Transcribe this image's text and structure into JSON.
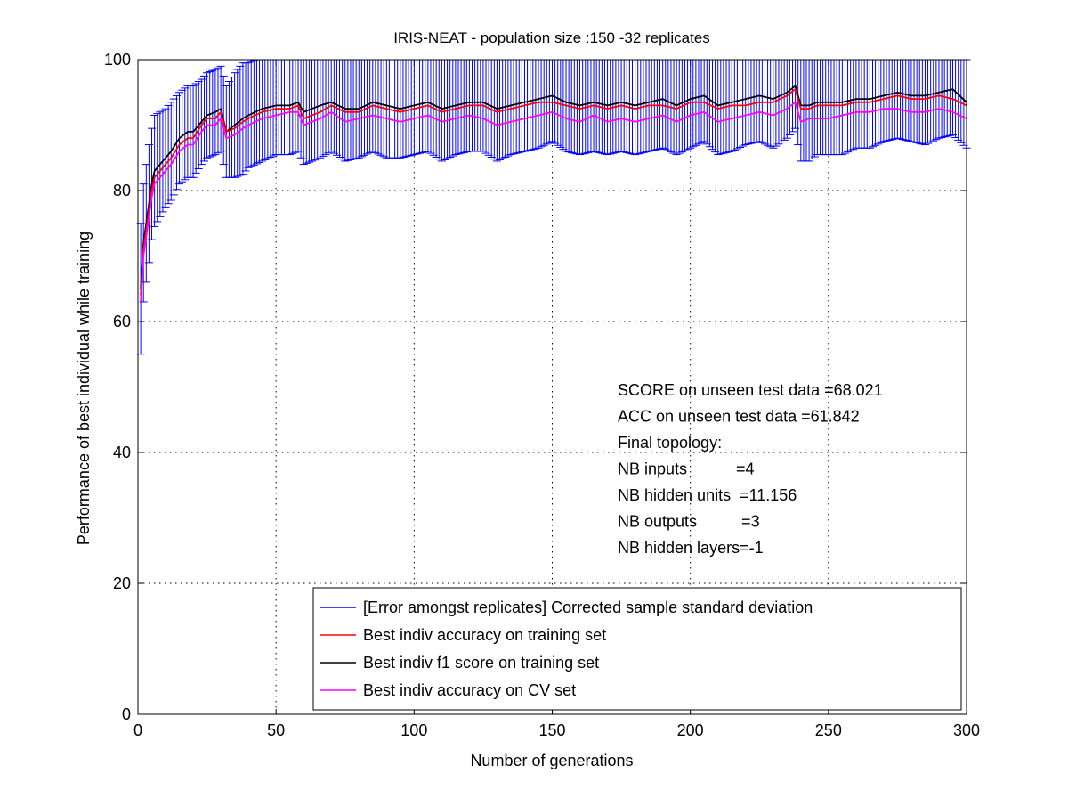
{
  "chart_data": {
    "type": "line",
    "title": "IRIS-NEAT - population size :150 -32 replicates",
    "xlabel": "Number of generations",
    "ylabel": "Performance of best individual while training",
    "xlim": [
      0,
      300
    ],
    "ylim": [
      0,
      100
    ],
    "xticks": [
      0,
      50,
      100,
      150,
      200,
      250,
      300
    ],
    "yticks": [
      0,
      20,
      40,
      60,
      80,
      100
    ],
    "grid": true,
    "legend_position": "bottom-right",
    "x_points": [
      1,
      2,
      3,
      4,
      5,
      6,
      8,
      10,
      12,
      15,
      18,
      20,
      23,
      25,
      28,
      30,
      32,
      35,
      38,
      40,
      45,
      50,
      55,
      58,
      60,
      63,
      66,
      70,
      75,
      80,
      85,
      90,
      95,
      100,
      105,
      110,
      115,
      120,
      125,
      130,
      135,
      140,
      145,
      150,
      155,
      160,
      165,
      170,
      175,
      180,
      185,
      190,
      195,
      200,
      205,
      210,
      215,
      220,
      225,
      230,
      235,
      238,
      240,
      243,
      246,
      250,
      255,
      260,
      265,
      270,
      275,
      280,
      285,
      290,
      295,
      300
    ],
    "series": [
      {
        "name": "Best indiv accuracy on training set",
        "color": "#ff0000",
        "values": [
          64,
          71,
          74,
          77,
          80,
          82,
          83,
          84,
          85,
          87,
          88,
          88,
          90,
          91,
          91,
          92,
          89,
          89.5,
          90.5,
          91,
          92,
          92.5,
          92.5,
          93,
          91,
          91.5,
          92,
          93,
          92,
          92,
          93,
          92.5,
          92,
          92.5,
          93,
          92,
          92.5,
          93,
          93,
          92,
          92.5,
          93,
          93.5,
          93.5,
          93,
          92.5,
          93,
          92.5,
          93,
          92.5,
          93,
          93,
          92.5,
          93.5,
          93.5,
          92.5,
          93,
          93,
          93.5,
          93.5,
          94.5,
          95.5,
          92.5,
          92.5,
          93,
          93,
          93,
          93.5,
          93.5,
          94,
          94.5,
          94,
          94,
          94.5,
          94,
          93
        ]
      },
      {
        "name": "Best indiv f1 score on training set",
        "color": "#000000",
        "values": [
          65,
          72,
          75,
          78,
          81,
          83,
          84,
          85,
          86,
          88,
          89,
          89,
          90.5,
          91.5,
          92,
          92.5,
          89,
          90,
          91,
          91.5,
          92.5,
          93,
          93,
          93.5,
          92,
          92.5,
          93,
          93.5,
          92.5,
          92.5,
          93.5,
          93,
          92.5,
          93,
          93.5,
          92.5,
          93,
          93.5,
          93.5,
          92.5,
          93,
          93.5,
          94,
          94.5,
          93.5,
          93,
          93.5,
          93,
          93.5,
          93,
          93.5,
          94,
          93,
          94,
          94.5,
          93,
          93.5,
          94,
          94.5,
          94,
          95,
          96,
          93,
          93,
          93.5,
          93.5,
          93.5,
          94,
          94,
          94.5,
          95,
          94.5,
          94.5,
          95,
          95.5,
          93.5
        ]
      },
      {
        "name": "Best indiv accuracy on CV set",
        "color": "#ff00ff",
        "values": [
          63,
          70,
          73,
          76,
          79,
          81,
          82,
          83,
          84,
          86,
          87,
          87,
          89,
          90,
          90,
          91,
          88,
          88.5,
          89.5,
          90,
          91,
          91.5,
          92,
          92,
          90,
          90.5,
          91,
          92,
          90.5,
          91,
          91.5,
          91,
          90.5,
          91,
          91.5,
          90.5,
          91,
          91.5,
          91,
          90,
          90.5,
          91,
          91.5,
          92,
          91,
          90.5,
          91.5,
          90.5,
          91,
          90.5,
          91,
          91.5,
          90.5,
          91.5,
          92,
          90.5,
          91,
          91.5,
          92,
          91.5,
          92.5,
          93.5,
          90.5,
          91,
          91,
          91,
          91.5,
          92,
          92,
          92.5,
          92.5,
          92,
          92,
          92.5,
          92,
          91
        ]
      }
    ],
    "error_bars": {
      "name": "[Error amongst replicates] Corrected sample standard deviation",
      "color": "#0000ff",
      "applies_to": "Best indiv f1 score on training set",
      "std": [
        10,
        9,
        9,
        9,
        8.5,
        8.5,
        8,
        7.5,
        7.5,
        7,
        7,
        7,
        6.5,
        6.5,
        6.5,
        6.5,
        7,
        8,
        8.5,
        8,
        8,
        7.5,
        7.5,
        7.5,
        8,
        8,
        8,
        7.5,
        8,
        7.5,
        7.5,
        8,
        7.5,
        7.5,
        7.5,
        8,
        7.5,
        7.5,
        7.5,
        8,
        7.5,
        7.5,
        7.5,
        7,
        7.5,
        7.5,
        7.5,
        7.5,
        7.5,
        7.5,
        7.5,
        7.5,
        7.5,
        7.5,
        7,
        7.5,
        7.5,
        7,
        7,
        7.5,
        7,
        6.5,
        8.5,
        8.5,
        8,
        8,
        8,
        7.5,
        7.5,
        7,
        7,
        7,
        7.5,
        7,
        7,
        7
      ]
    },
    "annotation_lines": [
      "SCORE on unseen test data =68.021",
      "ACC on unseen test data =61.842",
      "Final topology:",
      "NB inputs           =4",
      "NB hidden units  =11.156",
      "NB outputs          =3",
      "NB hidden layers=-1"
    ],
    "legend": [
      {
        "label": "[Error amongst replicates] Corrected sample standard deviation",
        "color": "#0000ff"
      },
      {
        "label": "Best indiv accuracy on training set",
        "color": "#ff0000"
      },
      {
        "label": "Best indiv f1 score on training set",
        "color": "#000000"
      },
      {
        "label": "Best indiv accuracy on CV set",
        "color": "#ff00ff"
      }
    ]
  }
}
